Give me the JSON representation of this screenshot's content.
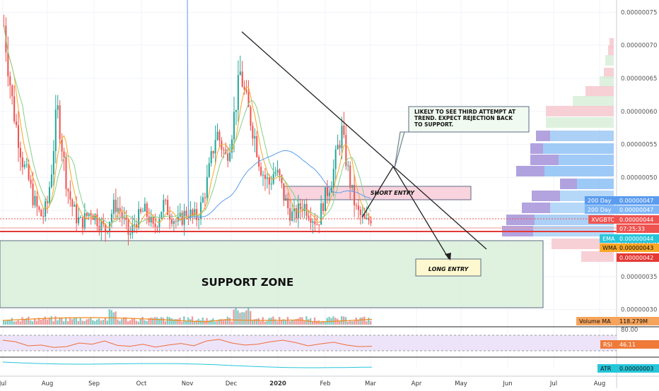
{
  "chart_data": {
    "type": "candlestick",
    "symbol": "XVGBTC",
    "price_axis": {
      "ticks": [
        "0.00000075",
        "0.00000070",
        "0.00000065",
        "0.00000060",
        "0.00000055",
        "0.00000050",
        "0.00000045",
        "0.00000040",
        "0.00000035",
        "0.00000030"
      ],
      "range": [
        2.9e-07,
        7.6e-07
      ]
    },
    "time_axis": {
      "ticks": [
        "Jul",
        "Aug",
        "Sep",
        "Oct",
        "Nov",
        "Dec",
        "2020",
        "Feb",
        "Mar",
        "Apr",
        "May",
        "Jun",
        "Jul",
        "Aug"
      ]
    },
    "price_labels": [
      {
        "text": "200 Day",
        "value": "0.00000047",
        "color": "#5b9cf0"
      },
      {
        "text": "200 Day",
        "value": "0.00000047",
        "color": "#7fb6f5"
      },
      {
        "text": "XVGBTC",
        "value": "0.00000044",
        "color": "#ef5350"
      },
      {
        "text": "",
        "value": "07:25:33",
        "color": "#ef5350"
      },
      {
        "text": "EMA",
        "value": "0.00000044",
        "color": "#26c6da"
      },
      {
        "text": "WMA",
        "value": "0.00000043",
        "color": "#f9a825"
      },
      {
        "text": "",
        "value": "0.00000042",
        "color": "#e53935"
      }
    ],
    "annotations": {
      "callout": "LIKELY TO SEE THIRD ATTEMPT AT TREND. EXPECT REJECTION BACK TO SUPPORT.",
      "short_entry": "SHORT ENTRY",
      "long_entry": "LONG ENTRY",
      "support_zone": "SUPPORT ZONE"
    },
    "series": [
      {
        "name": "close",
        "values": [
          7.3e-07,
          6.6e-07,
          6e-07,
          5.6e-07,
          5.2e-07,
          5e-07,
          4.7e-07,
          4.5e-07,
          4.4e-07,
          4.6e-07,
          5.2e-07,
          6.1e-07,
          5.5e-07,
          4.9e-07,
          4.6e-07,
          4.4e-07,
          4.3e-07,
          4.4e-07,
          4.5e-07,
          4.4e-07,
          4.3e-07,
          4.2e-07,
          4.4e-07,
          4.6e-07,
          4.5e-07,
          4.3e-07,
          4.1e-07,
          4.3e-07,
          4.4e-07,
          4.5e-07,
          4.4e-07,
          4.2e-07,
          4.4e-07,
          4.6e-07,
          4.5e-07,
          4.4e-07,
          4.3e-07,
          4.4e-07,
          4.5e-07,
          4.4e-07,
          4.4e-07,
          4.6e-07,
          4.9e-07,
          5.3e-07,
          5.7e-07,
          5.5e-07,
          5.3e-07,
          5.6e-07,
          6.1e-07,
          6.6e-07,
          6.2e-07,
          5.9e-07,
          5.6e-07,
          5.2e-07,
          5e-07,
          4.9e-07,
          5.1e-07,
          5e-07,
          4.7e-07,
          4.5e-07,
          4.4e-07,
          4.5e-07,
          4.6e-07,
          4.5e-07,
          4.4e-07,
          4.3e-07,
          4.6e-07,
          4.8e-07,
          5e-07,
          5.4e-07,
          5.7e-07,
          5.2e-07,
          4.8e-07,
          4.5e-07,
          4.4e-07,
          4.3e-07,
          4.4e-07
        ]
      }
    ],
    "indicators": {
      "volume_ma": {
        "label": "Volume MA",
        "value": "118.279M"
      },
      "rsi": {
        "label": "RSI",
        "value": "46.11",
        "level": "80.00",
        "values": [
          62,
          58,
          48,
          50,
          44,
          46,
          55,
          52,
          60,
          49,
          47,
          52,
          45,
          50,
          54,
          48,
          60,
          64,
          55,
          50,
          52,
          58,
          62,
          56,
          48,
          53,
          57,
          50,
          46,
          47
        ]
      },
      "atr": {
        "label": "ATR",
        "value": "0.00000003"
      }
    }
  }
}
